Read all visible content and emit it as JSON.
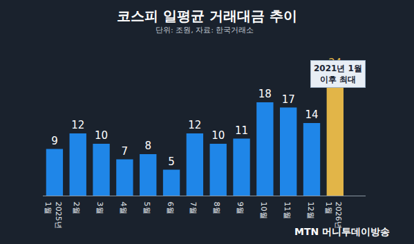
{
  "chart_data": {
    "type": "bar",
    "title": "코스피 일평균 거래대금 추이",
    "subtitle": "단위: 조원, 자료: 한국거래소",
    "categories": [
      "2025년\n1월",
      "2월",
      "3월",
      "4월",
      "5월",
      "6월",
      "7월",
      "8월",
      "9월",
      "10월",
      "11월",
      "12월",
      "2026년\n1월"
    ],
    "values": [
      9,
      12,
      10,
      7,
      8,
      5,
      12,
      10,
      11,
      18,
      17,
      14,
      24
    ],
    "colors": [
      "#1f86e8",
      "#1f86e8",
      "#1f86e8",
      "#1f86e8",
      "#1f86e8",
      "#1f86e8",
      "#1f86e8",
      "#1f86e8",
      "#1f86e8",
      "#1f86e8",
      "#1f86e8",
      "#1f86e8",
      "#e2b548"
    ],
    "ylim": [
      0,
      26
    ],
    "data_labels": true,
    "tick_labels": "x",
    "grid": false,
    "annotations": [
      {
        "text": "2021년 1월\n이후 최대",
        "category": "2026년\n1월"
      }
    ],
    "source": "MTN 머니투데이방송"
  }
}
